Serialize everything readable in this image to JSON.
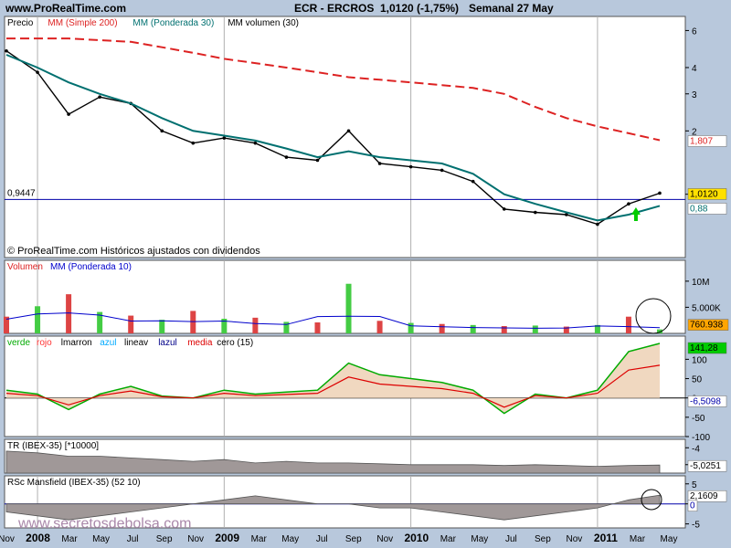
{
  "header": {
    "site": "www.ProRealTime.com",
    "ticker": "ECR - ERCROS",
    "price_change": "1,0120 (-1,75%)",
    "period": "Semanal 27 May"
  },
  "panels": {
    "price": {
      "legend": [
        "Precio",
        "MM (Simple 200)",
        "MM (Ponderada 30)",
        "MM volumen (30)"
      ],
      "legend_colors": [
        "#000000",
        "#dd2222",
        "#007070",
        "#000000"
      ],
      "y_ticks": [
        "6",
        "4",
        "3",
        "2",
        "1"
      ],
      "last_price_label": "1,0120",
      "sma200_label": "1,807",
      "wma30_label": "0,88",
      "hline_label": "0,9447",
      "copyright": "© ProRealTime.com Históricos ajustados con dividendos"
    },
    "volume": {
      "legend": [
        "Volumen",
        "MM (Ponderada 10)"
      ],
      "legend_colors": [
        "#dd2222",
        "#0000cc"
      ],
      "y_ticks": [
        "10M",
        "5.000K"
      ],
      "last_label": "760.938"
    },
    "osc": {
      "legend": [
        "verde",
        "rojo",
        "lmarron",
        "azul",
        "lineav",
        "lazul",
        "media",
        "cero (15)"
      ],
      "legend_colors": [
        "#00aa00",
        "#ff3333",
        "#000000",
        "#00aaff",
        "#000000",
        "#000088",
        "#dd0000",
        "#000000"
      ],
      "y_ticks": [
        "100",
        "50",
        "0",
        "-50",
        "-100"
      ],
      "label_top": "141,28",
      "label_mid": "-6,5098"
    },
    "tr": {
      "legend": "TR (IBEX-35) [*10000]",
      "y_ticks": [
        "-4",
        "-5"
      ],
      "label": "-5,0251"
    },
    "rsc": {
      "legend": "RSc Mansfield (IBEX-35) (52 10)",
      "y_ticks": [
        "5",
        "0",
        "-5"
      ],
      "label": "2,1609",
      "label2": "0"
    }
  },
  "watermark": "www.secretosdebolsa.com",
  "x_axis_labels": [
    "Nov",
    "2008",
    "Mar",
    "May",
    "Jul",
    "Sep",
    "Nov",
    "2009",
    "Mar",
    "May",
    "Jul",
    "Sep",
    "Nov",
    "2010",
    "Mar",
    "May",
    "Jul",
    "Sep",
    "Nov",
    "2011",
    "Mar",
    "May"
  ],
  "chart_data": {
    "type": "line",
    "title": "ECR - ERCROS",
    "x": [
      "2007-11",
      "2008-01",
      "2008-03",
      "2008-05",
      "2008-07",
      "2008-09",
      "2008-11",
      "2009-01",
      "2009-03",
      "2009-05",
      "2009-07",
      "2009-09",
      "2009-11",
      "2010-01",
      "2010-03",
      "2010-05",
      "2010-07",
      "2010-09",
      "2010-11",
      "2011-01",
      "2011-03",
      "2011-05"
    ],
    "log_scale": true,
    "ylim": [
      0.5,
      7
    ],
    "series": [
      {
        "name": "Precio",
        "values": [
          4.8,
          3.8,
          2.4,
          2.9,
          2.7,
          2.0,
          1.75,
          1.85,
          1.75,
          1.5,
          1.45,
          2.0,
          1.4,
          1.35,
          1.3,
          1.15,
          0.85,
          0.82,
          0.8,
          0.72,
          0.9,
          1.012
        ]
      },
      {
        "name": "MM (Simple 200)",
        "values": [
          5.5,
          5.5,
          5.5,
          5.4,
          5.3,
          5.0,
          4.7,
          4.4,
          4.2,
          4.0,
          3.8,
          3.6,
          3.5,
          3.4,
          3.3,
          3.2,
          3.0,
          2.6,
          2.3,
          2.1,
          1.95,
          1.807
        ]
      },
      {
        "name": "MM (Ponderada 30)",
        "values": [
          4.6,
          4.0,
          3.4,
          3.0,
          2.7,
          2.3,
          2.0,
          1.9,
          1.8,
          1.65,
          1.5,
          1.6,
          1.5,
          1.45,
          1.4,
          1.25,
          1.0,
          0.9,
          0.82,
          0.75,
          0.8,
          0.88
        ]
      }
    ],
    "volume": {
      "name": "Volumen",
      "ylim": [
        0,
        14000000
      ],
      "values": [
        3200000,
        5200000,
        7500000,
        4100000,
        3400000,
        2600000,
        4300000,
        2800000,
        3000000,
        2200000,
        2100000,
        9500000,
        2400000,
        2000000,
        1800000,
        1600000,
        1400000,
        1500000,
        1300000,
        1600000,
        3200000,
        760938
      ]
    },
    "hline": 0.9447
  }
}
